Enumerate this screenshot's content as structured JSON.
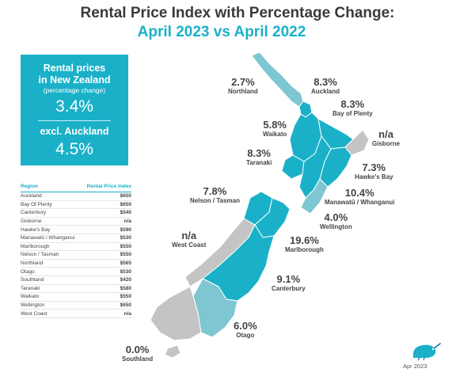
{
  "title": "Rental Price Index with Percentage Change:",
  "subtitle": "April 2023 vs April 2022",
  "summary": {
    "heading_line1": "Rental prices",
    "heading_line2": "in New Zealand",
    "note": "(percentage change)",
    "nz_value": "3.4%",
    "excl_heading": "excl. Auckland",
    "excl_value": "4.5%"
  },
  "table": {
    "col_region": "Region",
    "col_index": "Rental Price Index",
    "rows": [
      {
        "region": "Auckland",
        "value": "$650"
      },
      {
        "region": "Bay Of Plenty",
        "value": "$650"
      },
      {
        "region": "Canterbury",
        "value": "$540"
      },
      {
        "region": "Gisborne",
        "value": "n/a"
      },
      {
        "region": "Hawke's Bay",
        "value": "$590"
      },
      {
        "region": "Manawatū / Whanganui",
        "value": "$530"
      },
      {
        "region": "Marlborough",
        "value": "$550"
      },
      {
        "region": "Nelson / Tasman",
        "value": "$550"
      },
      {
        "region": "Northland",
        "value": "$565"
      },
      {
        "region": "Otago",
        "value": "$530"
      },
      {
        "region": "Southland",
        "value": "$420"
      },
      {
        "region": "Taranaki",
        "value": "$580"
      },
      {
        "region": "Waikato",
        "value": "$550"
      },
      {
        "region": "Wellington",
        "value": "$650"
      },
      {
        "region": "West Coast",
        "value": "n/a"
      }
    ]
  },
  "regions": [
    {
      "name": "Northland",
      "pct": "2.7%"
    },
    {
      "name": "Auckland",
      "pct": "8.3%"
    },
    {
      "name": "Bay of Plenty",
      "pct": "8.3%"
    },
    {
      "name": "Waikato",
      "pct": "5.8%"
    },
    {
      "name": "Gisborne",
      "pct": "n/a"
    },
    {
      "name": "Taranaki",
      "pct": "8.3%"
    },
    {
      "name": "Hawke's Bay",
      "pct": "7.3%"
    },
    {
      "name": "Nelson / Tasman",
      "pct": "7.8%"
    },
    {
      "name": "Manawatū / Whanganui",
      "pct": "10.4%"
    },
    {
      "name": "Wellington",
      "pct": "4.0%"
    },
    {
      "name": "West Coast",
      "pct": "n/a"
    },
    {
      "name": "Marlborough",
      "pct": "19.6%"
    },
    {
      "name": "Canterbury",
      "pct": "9.1%"
    },
    {
      "name": "Otago",
      "pct": "6.0%"
    },
    {
      "name": "Southland",
      "pct": "0.0%"
    }
  ],
  "colors": {
    "accent": "#1ab1c8",
    "light": "#7ec6d2",
    "na": "#c4c4c4"
  },
  "footer": "Apr 2023",
  "logo_icon": "kiwi-bird-icon"
}
